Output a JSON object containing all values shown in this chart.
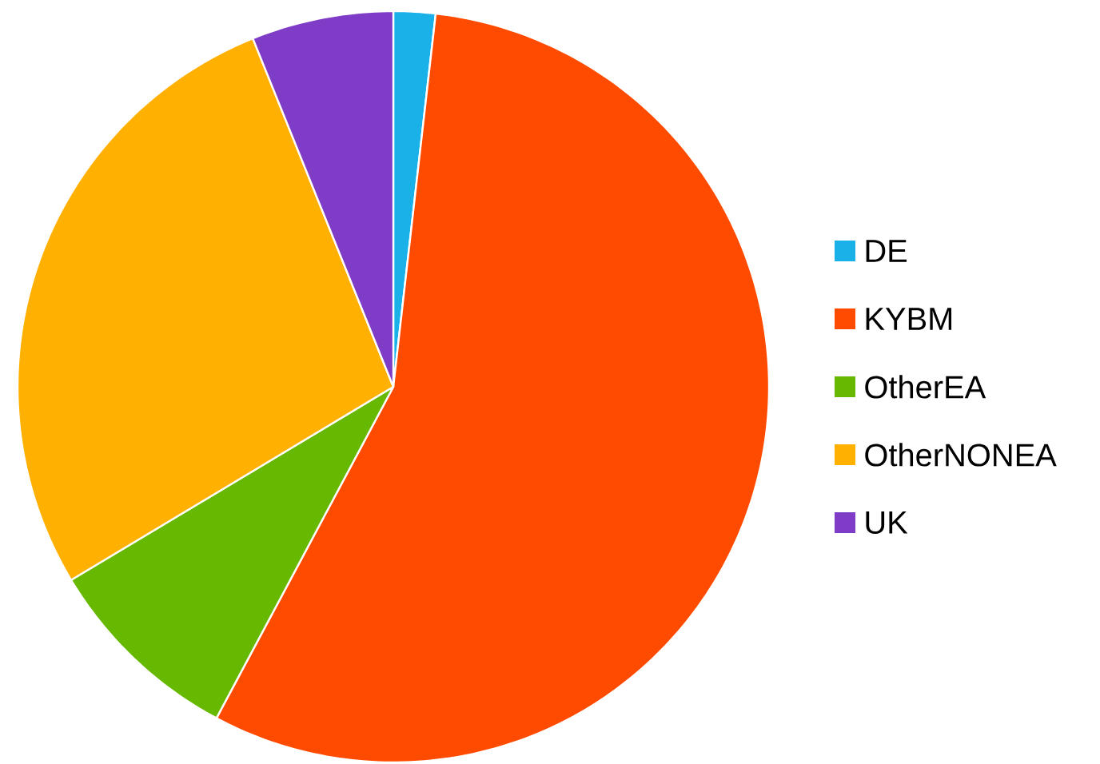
{
  "chart_data": {
    "type": "pie",
    "categories": [
      "DE",
      "KYBM",
      "OtherEA",
      "OtherNONEA",
      "UK"
    ],
    "values": [
      1.8,
      56.0,
      8.6,
      27.5,
      6.1
    ],
    "colors": [
      "#1ab0e8",
      "#ff4b00",
      "#66b800",
      "#ffb000",
      "#7e3cc7"
    ],
    "legend": "right"
  }
}
